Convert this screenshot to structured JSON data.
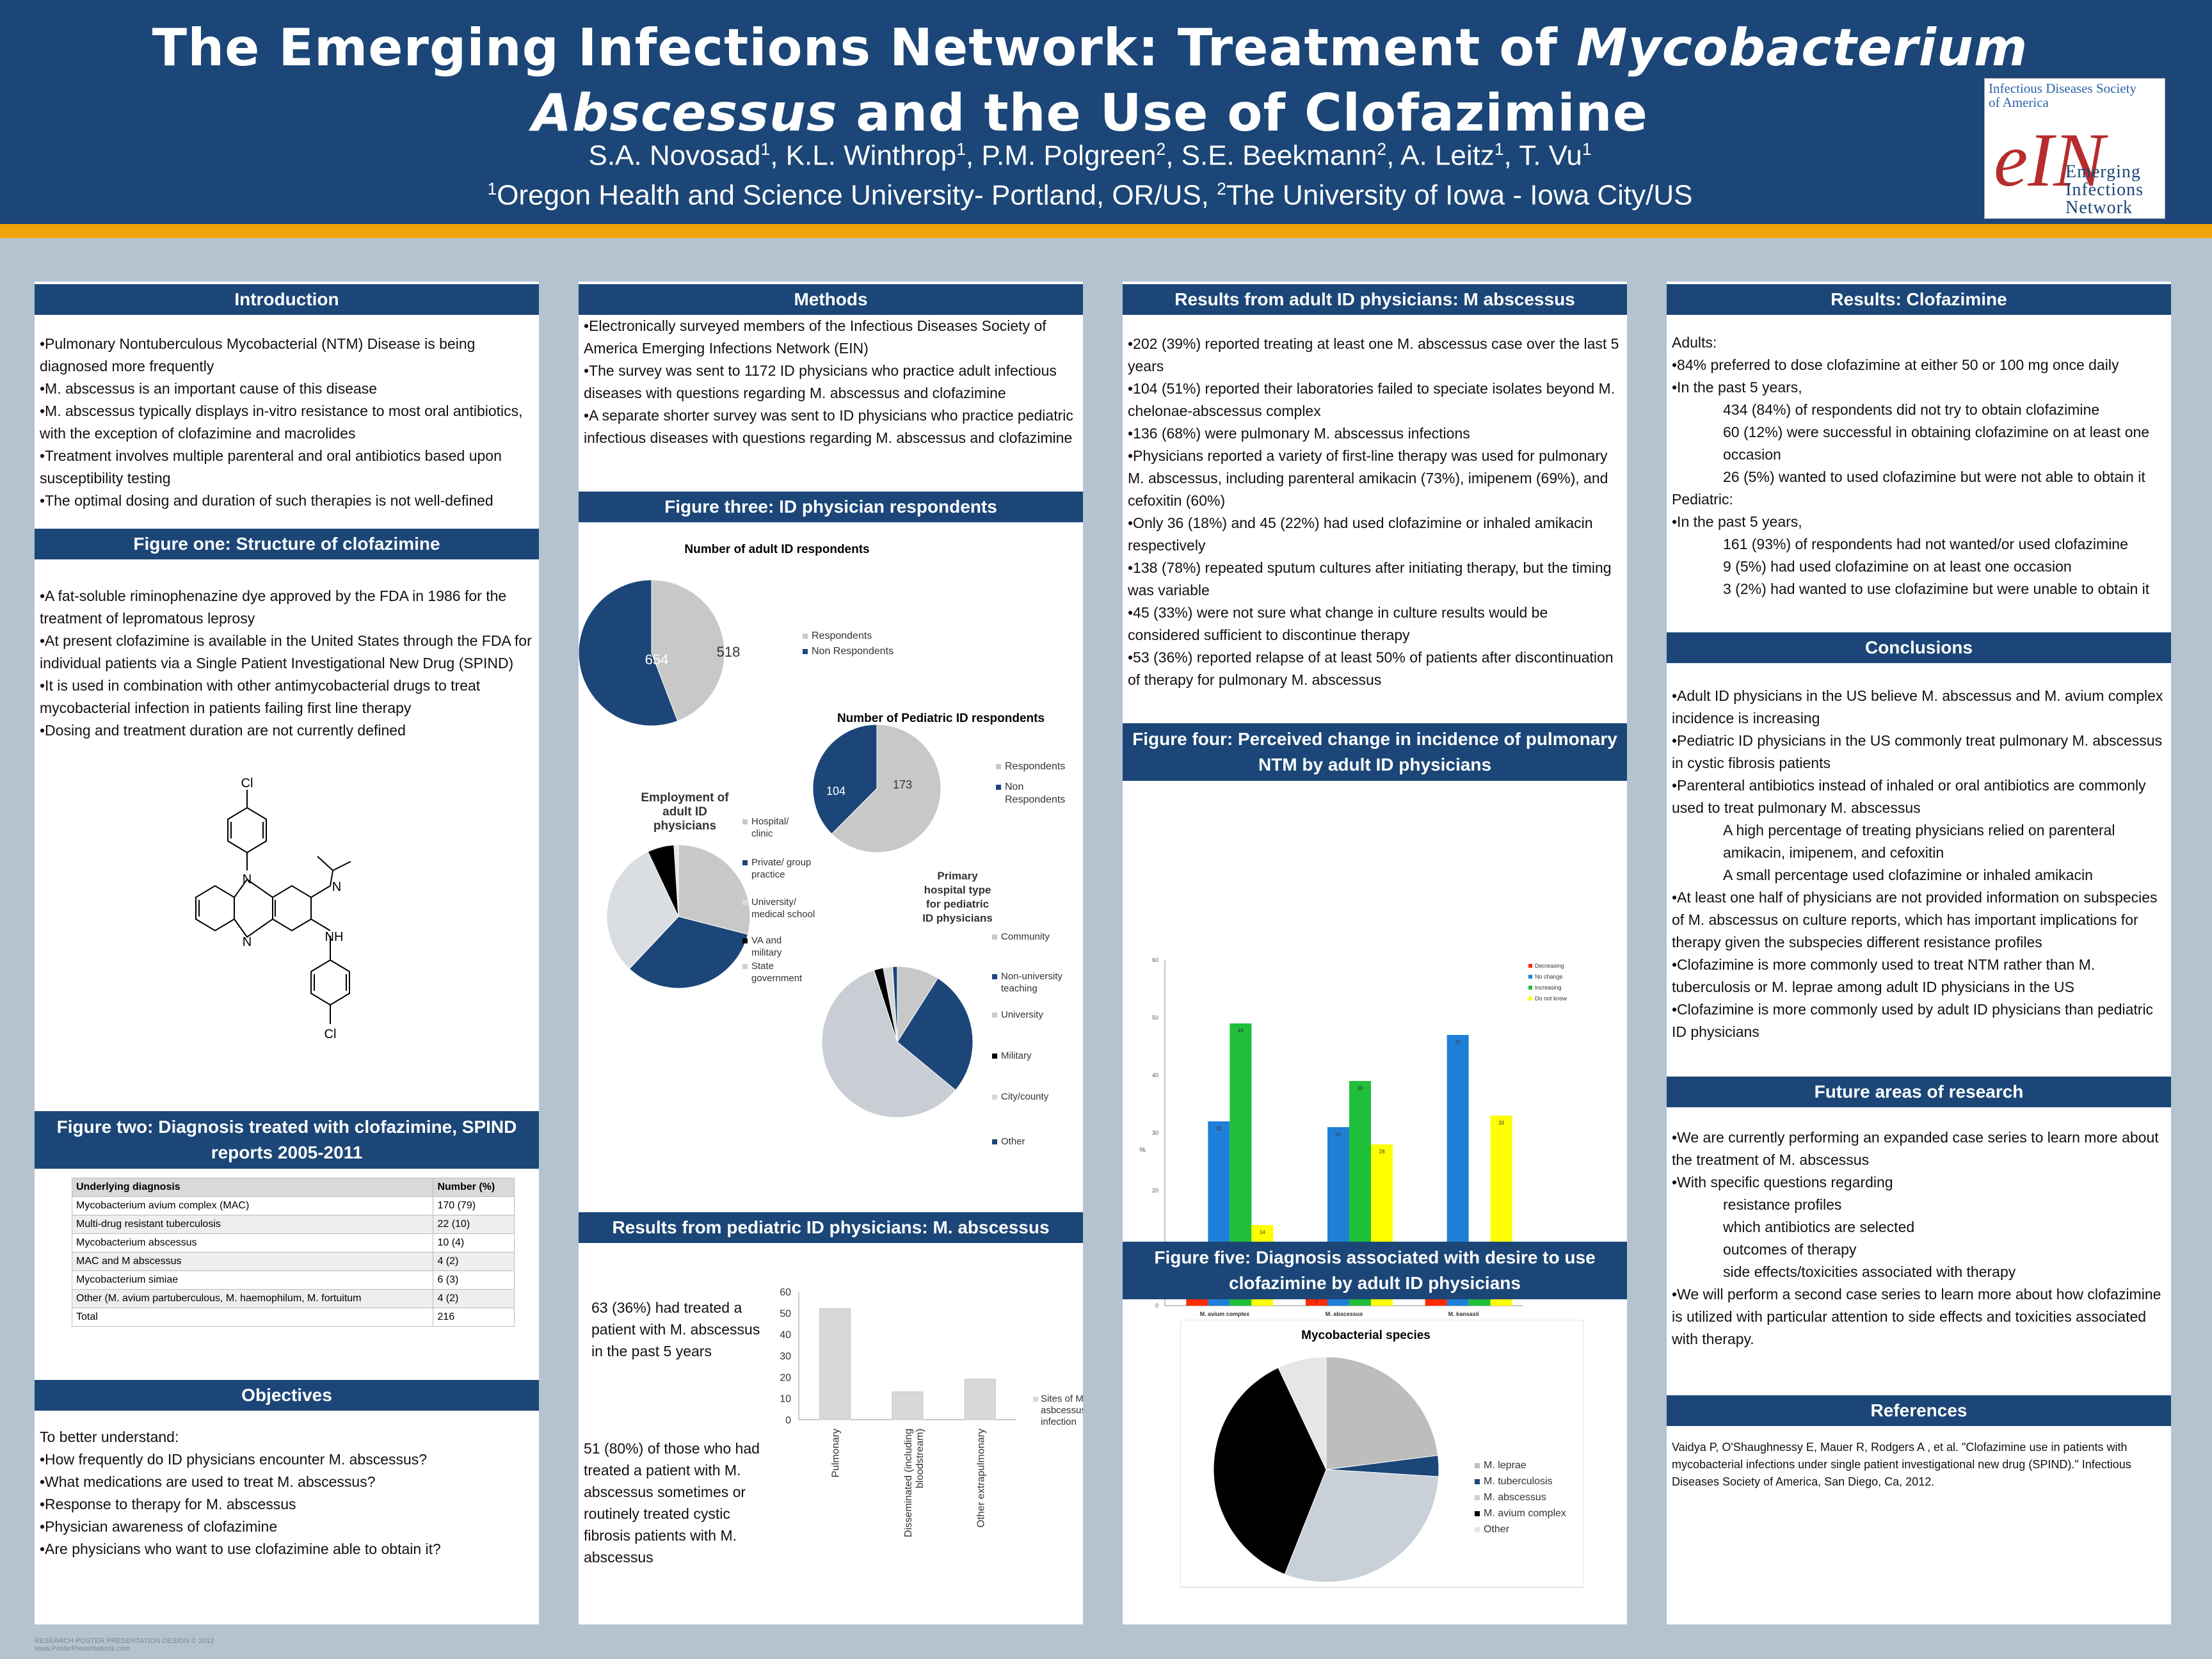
{
  "header": {
    "title_part1": "The Emerging Infections Network: Treatment of ",
    "title_italic1": "Mycobacterium",
    "title_italic2": "Abscessus",
    "title_part2": " and the Use of Clofazimine",
    "authors": [
      {
        "name": "S.A. Novosad",
        "sup": "1",
        "sep": ", "
      },
      {
        "name": "K.L. Winthrop",
        "sup": "1",
        "sep": ", "
      },
      {
        "name": "P.M. Polgreen",
        "sup": "2",
        "sep": ", "
      },
      {
        "name": "S.E. Beekmann",
        "sup": "2",
        "sep": ", "
      },
      {
        "name": "A. Leitz",
        "sup": "1",
        "sep": ", "
      },
      {
        "name": "T. Vu",
        "sup": "1",
        "sep": ""
      }
    ],
    "affil_sup1": "1",
    "affil1": "Oregon Health and Science University- Portland, OR/US, ",
    "affil_sup2": "2",
    "affil2": "The University of Iowa - Iowa City/US",
    "logo_idsa_line1": "Infectious Diseases Society",
    "logo_idsa_line2": "of America",
    "logo_ein": "eIN",
    "logo_line1": "Emerging",
    "logo_line2": "Infections",
    "logo_line3": "Network"
  },
  "introduction": {
    "heading": "Introduction",
    "items": [
      "•Pulmonary Nontuberculous Mycobacterial (NTM) Disease is being diagnosed more frequently",
      "•M. abscessus is an important cause of this disease",
      "•M. abscessus typically displays in-vitro resistance to most oral antibiotics, with the exception of clofazimine and macrolides",
      "•Treatment involves multiple parenteral and oral antibiotics based upon susceptibility testing",
      "•The optimal dosing and duration of such therapies is not well-defined"
    ]
  },
  "figure_one": {
    "heading": "Figure one: Structure of clofazimine",
    "items": [
      "•A fat-soluble riminophenazine dye approved by the FDA in 1986 for the treatment of lepromatous leprosy",
      "•At present clofazimine is available in the United States through the FDA for individual patients via a Single Patient Investigational New Drug (SPIND)",
      "•It is used in combination with other antimycobacterial drugs to treat mycobacterial infection in patients failing first line therapy",
      "•Dosing and treatment duration are not currently defined"
    ],
    "atoms": {
      "cl_top": "Cl",
      "n_ring": "N",
      "n_imine": "N",
      "n_bottom": "N",
      "nh": "NH",
      "cl_bottom": "Cl"
    }
  },
  "figure_two": {
    "heading": "Figure two: Diagnosis treated with clofazimine, SPIND reports 2005-2011",
    "columns": [
      "Underlying diagnosis",
      "Number (%)"
    ],
    "rows": [
      [
        "Mycobacterium avium complex (MAC)",
        "170 (79)"
      ],
      [
        "Multi-drug resistant tuberculosis",
        "22 (10)"
      ],
      [
        "Mycobacterium abscessus",
        "10 (4)"
      ],
      [
        "MAC and M abscessus",
        "4 (2)"
      ],
      [
        "Mycobacterium simiae",
        "6 (3)"
      ],
      [
        "Other (M. avium partuberculous, M. haemophilum, M. fortuitum",
        "4 (2)"
      ],
      [
        "Total",
        "216"
      ]
    ]
  },
  "objectives": {
    "heading": "Objectives",
    "items": [
      "To better understand:",
      "•How frequently do ID physicians encounter M. abscessus?",
      "•What medications are used to treat M. abscessus?",
      "•Response to therapy for M. abscessus",
      "•Physician awareness of clofazimine",
      "•Are physicians who want to use clofazimine able to obtain it?"
    ]
  },
  "methods": {
    "heading": "Methods",
    "items": [
      "•Electronically surveyed members of the Infectious Diseases Society of America Emerging Infections Network (EIN)",
      "•The survey was sent to 1172 ID physicians who practice adult infectious diseases with questions regarding M. abscessus and clofazimine",
      "•A separate shorter survey was sent to ID physicians who practice pediatric infectious diseases with questions regarding M. abscessus and clofazimine"
    ]
  },
  "figure_three": {
    "heading": "Figure three:  ID physician respondents"
  },
  "results_ped": {
    "heading": "Results from pediatric ID physicians: M. abscessus",
    "text1": "63 (36%) had treated a patient with M. abscessus in the past 5 years",
    "text2": "51 (80%) of those who had treated a patient with M. abscessus sometimes or routinely treated cystic fibrosis patients with M. abscessus"
  },
  "results_adult": {
    "heading": "Results from adult ID physicians:  M abscessus",
    "items": [
      "•202 (39%) reported treating at least one M. abscessus case over the last 5 years",
      "•104 (51%) reported their laboratories failed to speciate isolates beyond M. chelonae-abscessus complex",
      "•136 (68%) were pulmonary M. abscessus infections",
      "•Physicians reported a variety of first-line therapy was used for pulmonary M. abscessus, including parenteral amikacin (73%), imipenem (69%), and cefoxitin (60%)",
      "•Only 36 (18%) and 45 (22%) had used clofazimine or inhaled amikacin respectively",
      "•138 (78%) repeated sputum cultures after initiating therapy, but the timing was variable",
      "•45 (33%) were not sure what change in culture results would be considered sufficient to discontinue therapy",
      "•53 (36%) reported relapse of at least 50% of patients after discontinuation of therapy for pulmonary M. abscessus"
    ]
  },
  "figure_four": {
    "heading": "Figure four: Perceived change in incidence of pulmonary NTM by adult ID physicians"
  },
  "figure_five": {
    "heading": "Figure five: Diagnosis associated with desire to use clofazimine by adult ID physicians"
  },
  "results_clof": {
    "heading": "Results: Clofazimine",
    "lines": [
      {
        "t": "Adults:",
        "indent": false
      },
      {
        "t": "•84% preferred to dose clofazimine at either 50 or 100 mg once daily",
        "indent": false
      },
      {
        "t": "•In the past 5 years,",
        "indent": false
      },
      {
        "t": "434 (84%) of respondents did not try to obtain clofazimine",
        "indent": true
      },
      {
        "t": " 60 (12%) were successful in obtaining clofazimine on at least one occasion",
        "indent": true
      },
      {
        "t": "26 (5%) wanted to used clofazimine but were not able to obtain it",
        "indent": true
      },
      {
        "t": "Pediatric:",
        "indent": false
      },
      {
        "t": "•In the past 5 years,",
        "indent": false
      },
      {
        "t": "161 (93%) of respondents had not wanted/or used clofazimine",
        "indent": true
      },
      {
        "t": "9 (5%) had used clofazimine on at least one occasion",
        "indent": true
      },
      {
        "t": "3 (2%) had wanted to use clofazimine but were unable to obtain it",
        "indent": true
      }
    ]
  },
  "conclusions": {
    "heading": "Conclusions",
    "lines": [
      {
        "t": "•Adult ID physicians in the US believe M. abscessus and M. avium complex incidence is increasing",
        "indent": false
      },
      {
        "t": "•Pediatric ID physicians in the US commonly treat pulmonary M. abscessus in cystic fibrosis patients",
        "indent": false
      },
      {
        "t": "•Parenteral antibiotics instead of inhaled or oral antibiotics are commonly used to treat pulmonary M. abscessus",
        "indent": false
      },
      {
        "t": "A high percentage of treating physicians relied on parenteral amikacin, imipenem, and cefoxitin",
        "indent": true
      },
      {
        "t": "A small percentage used clofazimine or inhaled amikacin",
        "indent": true
      },
      {
        "t": "•At least one half of physicians are not provided information on subspecies of M. abscessus on culture reports, which has important implications for therapy given the subspecies different resistance profiles",
        "indent": false
      },
      {
        "t": "•Clofazimine is more commonly used to treat NTM rather than M. tuberculosis or M. leprae among adult ID physicians in the US",
        "indent": false
      },
      {
        "t": "•Clofazimine is more commonly used by adult ID physicians than pediatric ID physicians",
        "indent": false
      }
    ]
  },
  "future": {
    "heading": "Future areas of research",
    "lines": [
      {
        "t": "•We are currently performing an expanded case series to learn more about the treatment of M. abscessus",
        "indent": false
      },
      {
        "t": "•With specific questions regarding",
        "indent": false
      },
      {
        "t": "resistance profiles",
        "indent": true
      },
      {
        "t": "which antibiotics are selected",
        "indent": true
      },
      {
        "t": "outcomes of therapy",
        "indent": true
      },
      {
        "t": "side effects/toxicities associated with therapy",
        "indent": true
      },
      {
        "t": "•We will perform a second case series to learn more about how clofazimine is utilized with particular attention to side effects and toxicities associated with therapy.",
        "indent": false
      }
    ]
  },
  "references": {
    "heading": "References",
    "text": "Vaidya P, O'Shaughnessy E, Mauer R, Rodgers A , et al. \"Clofazimine use in patients with mycobacterial infections under single patient investigational new drug (SPIND).\" Infectious Diseases Society of America, San Diego, Ca, 2012."
  },
  "watermark": {
    "line1": "RESEARCH POSTER PRESENTATION DESIGN © 2012",
    "line2": "www.PosterPresentations.com"
  },
  "colors": {
    "navy": "#1b4677",
    "orange": "#f0a30a",
    "grey": "#bdbdbd",
    "red": "#ff2a00",
    "blue": "#1f7fd8",
    "green": "#1fbf3a",
    "yellow": "#ffff00"
  },
  "chart_data": [
    {
      "type": "pie",
      "title": "Number of adult ID respondents",
      "labels": [
        "Respondents",
        "Non Respondents"
      ],
      "values": [
        518,
        654
      ],
      "data_labels": [
        "518",
        "654"
      ]
    },
    {
      "type": "pie",
      "title": "Number of Pediatric ID respondents",
      "labels": [
        "Respondents",
        "Non Respondents"
      ],
      "values": [
        173,
        104
      ],
      "data_labels": [
        "173",
        "104"
      ]
    },
    {
      "type": "pie",
      "title": "Employment of adult ID physicians",
      "labels": [
        "Hospital/ clinic",
        "Private/ group practice",
        "University/ medical school",
        "VA and military",
        "State government"
      ],
      "values": [
        29,
        33,
        31,
        6,
        1
      ]
    },
    {
      "type": "pie",
      "title": "Primary hospital type for pediatric ID physicians",
      "labels": [
        "Community",
        "Non-university teaching",
        "University",
        "Military",
        "City/county",
        "Other"
      ],
      "values": [
        9,
        27,
        59,
        2,
        2,
        1
      ]
    },
    {
      "type": "bar",
      "title": "",
      "categories": [
        "M. avium complex",
        "M. abscessus",
        "M. kansasii"
      ],
      "ylabel": "%",
      "ylim": [
        0,
        60
      ],
      "yticks": [
        0,
        10,
        20,
        30,
        40,
        50,
        60
      ],
      "series": [
        {
          "name": "Decreasing",
          "values": [
            6,
            2,
            9
          ]
        },
        {
          "name": "No change",
          "values": [
            32,
            31,
            47
          ]
        },
        {
          "name": "Increasing",
          "values": [
            49,
            39,
            11
          ]
        },
        {
          "name": "Do not know",
          "values": [
            14,
            28,
            33
          ]
        }
      ]
    },
    {
      "type": "bar",
      "title": "",
      "categories": [
        "Pulmonary",
        "Disseminated (including bloodstream)",
        "Other extrapulmonary"
      ],
      "ylim": [
        0,
        60
      ],
      "yticks": [
        0,
        10,
        20,
        30,
        40,
        50,
        60
      ],
      "series": [
        {
          "name": "Sites of M asbcessus infection",
          "values": [
            52,
            13,
            19
          ]
        }
      ]
    },
    {
      "type": "pie",
      "title": "Mycobacterial species",
      "labels": [
        "M. leprae",
        "M. tuberculosis",
        "M. abscessus",
        "M. avium complex",
        "Other"
      ],
      "values": [
        23,
        3,
        30,
        37,
        7
      ]
    }
  ]
}
